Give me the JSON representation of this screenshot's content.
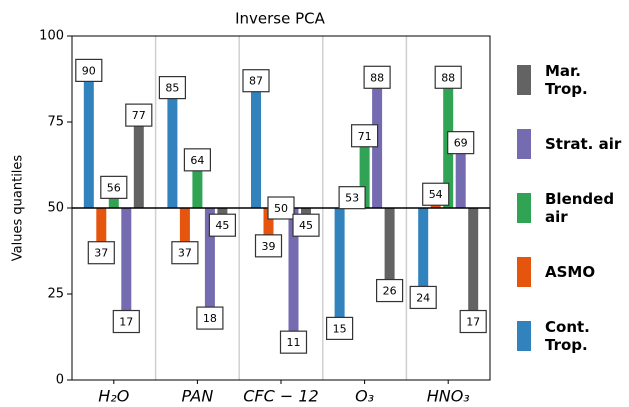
{
  "chart_data": {
    "type": "bar",
    "title": "Inverse PCA",
    "y_label": "Values quantiles",
    "categories": [
      "H₂O",
      "PAN",
      "CFC − 12",
      "O₃",
      "HNO₃"
    ],
    "series": [
      {
        "name": "Cont. Trop.",
        "color": "#3182bd",
        "values": [
          90,
          85,
          87,
          15,
          24
        ]
      },
      {
        "name": "ASMO",
        "color": "#e6550d",
        "values": [
          37,
          37,
          39,
          53,
          54
        ]
      },
      {
        "name": "Blended air",
        "color": "#31a354",
        "values": [
          56,
          64,
          50,
          71,
          88
        ]
      },
      {
        "name": "Strat. air",
        "color": "#756bb1",
        "values": [
          17,
          18,
          11,
          88,
          69
        ]
      },
      {
        "name": "Mar. Trop.",
        "color": "#636363",
        "values": [
          77,
          45,
          45,
          26,
          17
        ]
      }
    ],
    "baseline": 50,
    "ylim": [
      0,
      100
    ],
    "yticks": [
      0,
      25,
      50,
      75,
      100
    ],
    "grid": true
  }
}
